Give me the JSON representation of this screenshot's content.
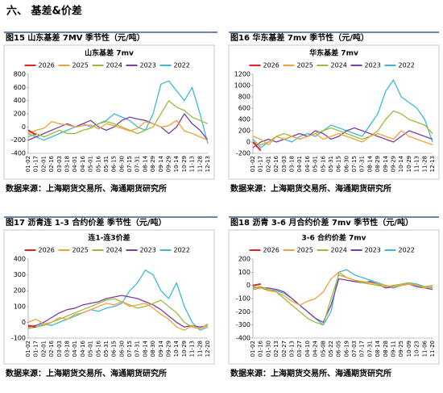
{
  "section_title": "六、  基差&价差",
  "figures": [
    {
      "caption": "图15  山东基差 7MV 季节性（元/吨）",
      "source": "数据来源：上海期货交易所、海通期货研究所"
    },
    {
      "caption": "图16  华东基差 7mv 季节性（元/吨）",
      "source": "数据来源：上海期货交易所、海通期货研究所"
    },
    {
      "caption": "图17  沥青连 1-3 合约价差 季节性（元/吨）",
      "source": "数据来源：上海期货交易所、海通期货研究所"
    },
    {
      "caption": "图18  沥青 3-6 月合约价差 7mv 季节性（元/吨）",
      "source": "数据来源：上海期货交易所、海通期货研究所"
    }
  ],
  "chart_data": [
    {
      "type": "line",
      "title": "山东基差 7mv",
      "categories": [
        "01-02",
        "01-17",
        "02-01",
        "02-16",
        "03-03",
        "03-18",
        "04-01",
        "04-16",
        "05-01",
        "05-16",
        "05-31",
        "06-15",
        "06-30",
        "07-15",
        "07-31",
        "08-14",
        "08-29",
        "09-14",
        "09-29",
        "10-14",
        "10-29",
        "11-13",
        "11-28",
        "12-13"
      ],
      "ylim": [
        -400,
        800
      ],
      "yticks": [
        -400,
        -200,
        0,
        200,
        400,
        600,
        800
      ],
      "series": [
        {
          "name": "2026",
          "color": "#e8201f",
          "values": [
            -50,
            -120,
            null,
            null,
            null,
            null,
            null,
            null,
            null,
            null,
            null,
            null,
            null,
            null,
            null,
            null,
            null,
            null,
            null,
            null,
            null,
            null,
            null,
            null
          ]
        },
        {
          "name": "2025",
          "color": "#f5a03c",
          "values": [
            -100,
            -50,
            -20,
            80,
            50,
            30,
            0,
            20,
            30,
            -30,
            50,
            20,
            -20,
            -60,
            -20,
            80,
            50,
            0,
            20,
            100,
            -60,
            -100,
            -150,
            -200
          ]
        },
        {
          "name": "2024",
          "color": "#9bbb3f",
          "values": [
            -150,
            -100,
            -150,
            -100,
            -50,
            -100,
            -100,
            -50,
            -20,
            50,
            80,
            50,
            0,
            -50,
            -100,
            -50,
            0,
            200,
            400,
            300,
            250,
            150,
            100,
            50
          ]
        },
        {
          "name": "2023",
          "color": "#7a3fa0",
          "values": [
            -200,
            -150,
            -100,
            -50,
            0,
            50,
            0,
            50,
            100,
            0,
            -50,
            0,
            100,
            150,
            120,
            100,
            50,
            0,
            -100,
            0,
            200,
            50,
            -50,
            -200
          ]
        },
        {
          "name": "2022",
          "color": "#3fb8d8",
          "values": [
            -100,
            -150,
            -200,
            -150,
            -100,
            -50,
            0,
            50,
            0,
            50,
            100,
            200,
            150,
            100,
            0,
            -50,
            200,
            650,
            700,
            550,
            400,
            600,
            200,
            -250
          ]
        }
      ]
    },
    {
      "type": "line",
      "title": "华东基差 7mv",
      "categories": [
        "01-02",
        "01-17",
        "02-01",
        "02-16",
        "03-03",
        "03-18",
        "04-01",
        "04-16",
        "05-01",
        "05-16",
        "05-31",
        "06-15",
        "06-30",
        "07-15",
        "07-31",
        "08-14",
        "08-29",
        "09-14",
        "09-29",
        "10-14",
        "10-29",
        "11-13",
        "11-28",
        "12-13"
      ],
      "ylim": [
        -200,
        1200
      ],
      "yticks": [
        -200,
        0,
        200,
        400,
        600,
        800,
        1000,
        1200
      ],
      "series": [
        {
          "name": "2026",
          "color": "#e8201f",
          "values": [
            0,
            -150,
            null,
            null,
            null,
            null,
            null,
            null,
            null,
            null,
            null,
            null,
            null,
            null,
            null,
            null,
            null,
            null,
            null,
            null,
            null,
            null,
            null,
            null
          ]
        },
        {
          "name": "2025",
          "color": "#f5a03c",
          "values": [
            100,
            50,
            -50,
            100,
            50,
            100,
            50,
            100,
            150,
            50,
            100,
            150,
            100,
            50,
            0,
            100,
            150,
            100,
            50,
            200,
            100,
            50,
            0,
            -50
          ]
        },
        {
          "name": "2024",
          "color": "#9bbb3f",
          "values": [
            0,
            -50,
            0,
            100,
            150,
            100,
            50,
            100,
            150,
            200,
            250,
            200,
            150,
            100,
            50,
            100,
            200,
            400,
            550,
            500,
            400,
            350,
            300,
            150
          ]
        },
        {
          "name": "2023",
          "color": "#7a3fa0",
          "values": [
            -100,
            0,
            50,
            0,
            50,
            100,
            150,
            100,
            200,
            150,
            50,
            100,
            200,
            250,
            200,
            150,
            100,
            50,
            0,
            100,
            200,
            150,
            100,
            50
          ]
        },
        {
          "name": "2022",
          "color": "#3fb8d8",
          "values": [
            50,
            -100,
            0,
            100,
            50,
            0,
            100,
            150,
            100,
            200,
            300,
            250,
            200,
            150,
            100,
            300,
            500,
            900,
            1100,
            800,
            700,
            600,
            400,
            0
          ]
        }
      ]
    },
    {
      "type": "line",
      "title": "连1-连3价差",
      "categories": [
        "01-02",
        "01-17",
        "02-01",
        "02-16",
        "03-03",
        "03-18",
        "04-01",
        "04-16",
        "05-01",
        "05-16",
        "05-31",
        "06-15",
        "06-30",
        "07-15",
        "07-31",
        "08-14",
        "08-30",
        "09-14",
        "09-29",
        "10-14",
        "10-29",
        "11-13",
        "11-28",
        "12-20"
      ],
      "ylim": [
        -100,
        400
      ],
      "yticks": [
        -100,
        0,
        100,
        200,
        300,
        400
      ],
      "series": [
        {
          "name": "2026",
          "color": "#e8201f",
          "values": [
            -20,
            -30,
            null,
            null,
            null,
            null,
            null,
            null,
            null,
            null,
            null,
            null,
            null,
            null,
            null,
            null,
            null,
            null,
            null,
            null,
            null,
            null,
            null,
            null
          ]
        },
        {
          "name": "2025",
          "color": "#f5a03c",
          "values": [
            0,
            20,
            -10,
            0,
            30,
            20,
            50,
            60,
            80,
            100,
            120,
            110,
            130,
            100,
            110,
            120,
            90,
            50,
            20,
            -30,
            -50,
            -20,
            -40,
            -10
          ]
        },
        {
          "name": "2024",
          "color": "#9bbb3f",
          "values": [
            -40,
            -30,
            -20,
            0,
            20,
            40,
            60,
            80,
            100,
            120,
            140,
            150,
            130,
            110,
            90,
            100,
            120,
            140,
            100,
            60,
            0,
            -30,
            -40,
            -20
          ]
        },
        {
          "name": "2023",
          "color": "#7a3fa0",
          "values": [
            -30,
            -20,
            0,
            30,
            60,
            80,
            90,
            110,
            120,
            130,
            150,
            160,
            170,
            160,
            150,
            130,
            110,
            80,
            40,
            0,
            -30,
            -20,
            -30,
            -20
          ]
        },
        {
          "name": "2022",
          "color": "#3fb8d8",
          "values": [
            -20,
            -30,
            -10,
            -20,
            0,
            20,
            40,
            60,
            80,
            70,
            90,
            100,
            120,
            200,
            250,
            330,
            300,
            200,
            150,
            250,
            100,
            0,
            -50,
            -30
          ]
        }
      ]
    },
    {
      "type": "line",
      "title": "3-6 合约价差 7mv",
      "categories": [
        "01-02",
        "01-16",
        "01-30",
        "02-13",
        "02-27",
        "03-13",
        "03-27",
        "04-10",
        "04-24",
        "05-08",
        "05-22",
        "06-05",
        "06-19",
        "07-03",
        "07-17",
        "07-31",
        "08-14",
        "08-28",
        "09-11",
        "09-25",
        "10-09",
        "10-23",
        "11-06",
        "11-20"
      ],
      "ylim": [
        -400,
        200
      ],
      "yticks": [
        -400,
        -300,
        -200,
        -100,
        0,
        100,
        200
      ],
      "series": [
        {
          "name": "2026",
          "color": "#e8201f",
          "values": [
            0,
            10,
            null,
            null,
            null,
            null,
            null,
            null,
            null,
            null,
            null,
            null,
            null,
            null,
            null,
            null,
            null,
            null,
            null,
            null,
            null,
            null,
            null,
            null
          ]
        },
        {
          "name": "2025",
          "color": "#f5a03c",
          "values": [
            -30,
            -20,
            -40,
            -50,
            -80,
            -120,
            -150,
            -120,
            -100,
            -50,
            50,
            100,
            60,
            40,
            30,
            20,
            10,
            0,
            -10,
            0,
            10,
            0,
            -20,
            -10
          ]
        },
        {
          "name": "2024",
          "color": "#9bbb3f",
          "values": [
            -20,
            -10,
            -30,
            -50,
            -100,
            -150,
            -200,
            -250,
            -280,
            -300,
            -100,
            80,
            60,
            40,
            20,
            10,
            0,
            -10,
            0,
            10,
            20,
            0,
            -10,
            0
          ]
        },
        {
          "name": "2023",
          "color": "#7a3fa0",
          "values": [
            -30,
            -20,
            -20,
            -30,
            -50,
            -100,
            -150,
            -200,
            -250,
            -280,
            -150,
            50,
            40,
            30,
            20,
            30,
            10,
            -20,
            -10,
            0,
            10,
            -10,
            -20,
            -30
          ]
        },
        {
          "name": "2022",
          "color": "#3fb8d8",
          "values": [
            -10,
            -20,
            -30,
            -40,
            -60,
            -100,
            -150,
            -200,
            -250,
            -300,
            -200,
            100,
            120,
            80,
            60,
            40,
            20,
            0,
            -20,
            0,
            20,
            10,
            -10,
            -20
          ]
        }
      ]
    }
  ]
}
